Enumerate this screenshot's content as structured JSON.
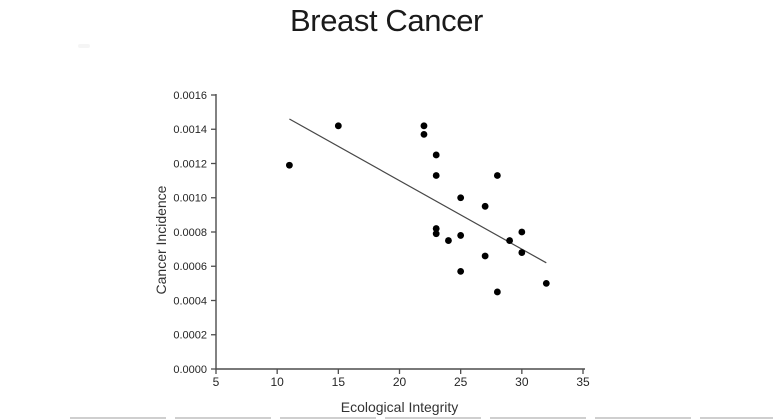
{
  "chart_data": {
    "type": "scatter",
    "title": "Breast Cancer",
    "xlabel": "Ecological Integrity",
    "ylabel": "Cancer Incidence",
    "xlim": [
      5,
      35
    ],
    "ylim": [
      0,
      0.0016
    ],
    "xticks": [
      5,
      10,
      15,
      20,
      25,
      30,
      35
    ],
    "yticks": [
      0,
      0.0002,
      0.0004,
      0.0006,
      0.0008,
      0.001,
      0.0012,
      0.0014,
      0.0016
    ],
    "ytick_decimals": 4,
    "grid": false,
    "legend": "none",
    "points": [
      [
        11,
        0.00119
      ],
      [
        15,
        0.00142
      ],
      [
        22,
        0.00142
      ],
      [
        22,
        0.00137
      ],
      [
        23,
        0.00125
      ],
      [
        23,
        0.00113
      ],
      [
        23,
        0.00082
      ],
      [
        23,
        0.00079
      ],
      [
        24,
        0.00075
      ],
      [
        25,
        0.001
      ],
      [
        25,
        0.00078
      ],
      [
        25,
        0.00057
      ],
      [
        27,
        0.00095
      ],
      [
        27,
        0.00066
      ],
      [
        28,
        0.00113
      ],
      [
        28,
        0.00045
      ],
      [
        29,
        0.00075
      ],
      [
        30,
        0.0008
      ],
      [
        30,
        0.00068
      ],
      [
        32,
        0.0005
      ]
    ],
    "trendline": {
      "x1": 11,
      "y1": 0.00146,
      "x2": 32,
      "y2": 0.00062
    },
    "colors": {
      "marker": "#000000",
      "axis": "#4d4d4d",
      "trend": "#474747",
      "tick_label": "#262626",
      "title": "#1a1a1a"
    }
  }
}
